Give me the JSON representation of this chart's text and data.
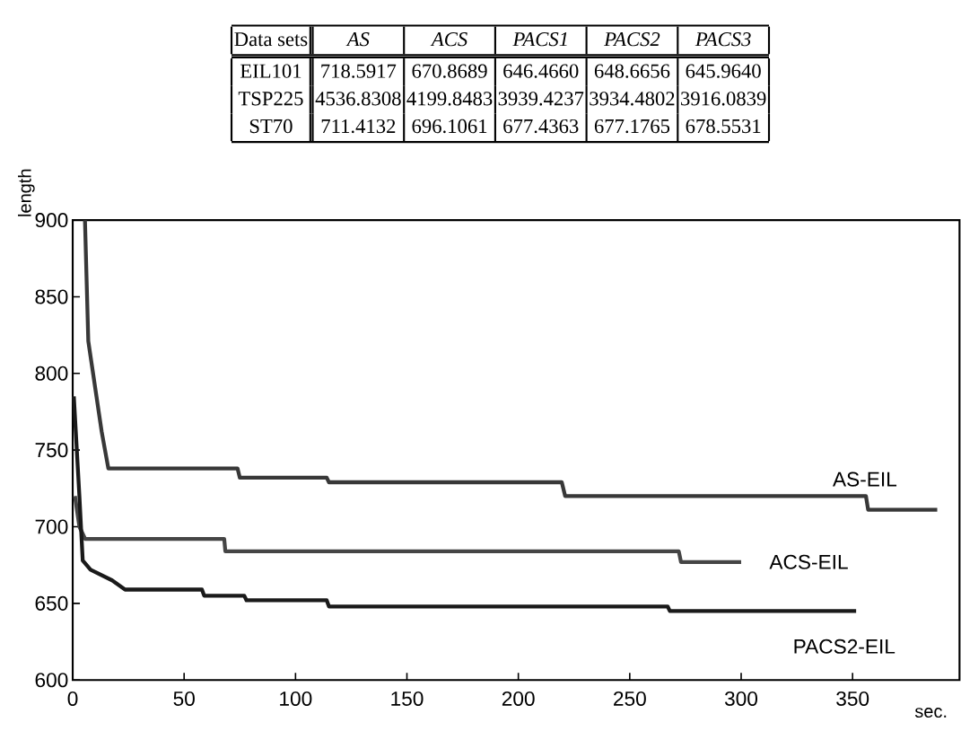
{
  "chart_data": {
    "type": "line",
    "xlabel": "sec.",
    "ylabel": "length",
    "xlim": [
      0,
      398
    ],
    "ylim": [
      600,
      900
    ],
    "xticks": [
      0,
      50,
      100,
      150,
      200,
      250,
      300,
      350
    ],
    "yticks": [
      600,
      650,
      700,
      750,
      800,
      850,
      900
    ],
    "grid": false,
    "legend": false,
    "marker": "none",
    "line_style": "solid",
    "series": [
      {
        "name": "AS-EIL",
        "color": "#383838",
        "x": [
          5.5,
          7,
          13,
          16,
          74,
          75,
          114,
          115,
          219.5,
          221,
          356,
          357,
          388
        ],
        "values": [
          900,
          821,
          762,
          738,
          738,
          732,
          732,
          729,
          729,
          720,
          720,
          711,
          711
        ]
      },
      {
        "name": "ACS-EIL",
        "color": "#454545",
        "x": [
          1,
          3,
          5.6,
          68,
          68.5,
          272,
          273,
          300
        ],
        "values": [
          720,
          700,
          692,
          692,
          684,
          684,
          677,
          677
        ]
      },
      {
        "name": "PACS2-EIL",
        "color": "#1a1a1a",
        "x": [
          0.5,
          3,
          4.5,
          8,
          17.7,
          23.5,
          58,
          59,
          77,
          78,
          114,
          115,
          267,
          268,
          351.6
        ],
        "values": [
          785,
          720,
          678,
          672,
          665,
          659,
          659,
          655,
          655,
          652,
          652,
          648,
          648,
          645,
          645
        ]
      }
    ],
    "annotations": [
      "Data sets",
      "AS",
      "ACS",
      "PACS1",
      "PACS2",
      "PACS3",
      "EIL101",
      "718.5917",
      "670.8689",
      "646.4660",
      "648.6656",
      "645.9640",
      "TSP225",
      "4536.8308",
      "4199.8483",
      "3939.4237",
      "3934.4802",
      "3916.0839",
      "ST70",
      "711.4132",
      "696.1061",
      "677.4363",
      "677.1765",
      "678.5531"
    ]
  }
}
